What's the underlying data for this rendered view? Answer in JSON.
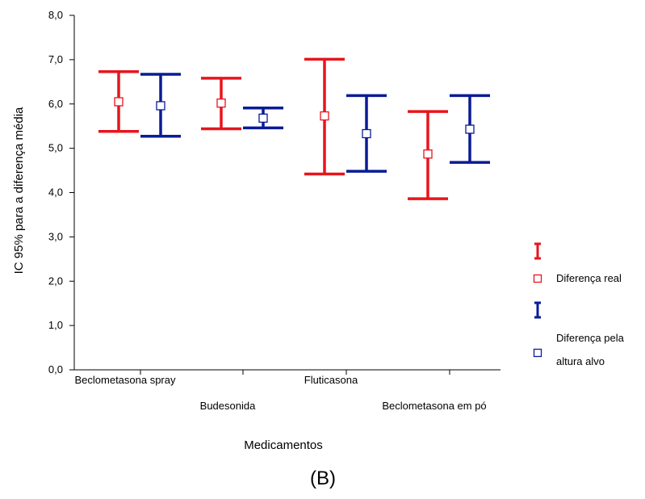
{
  "chart_data": {
    "type": "errorbar",
    "xlabel": "Medicamentos",
    "ylabel": "IC 95% para a diferença média",
    "ylim": [
      0,
      8
    ],
    "yticks": [
      "0,0",
      "1,0",
      "2,0",
      "3,0",
      "4,0",
      "5,0",
      "6,0",
      "7,0",
      "8,0"
    ],
    "categories": [
      "Beclometasona spray",
      "Budesonida",
      "Fluticasona",
      "Beclometasona em pó"
    ],
    "series": [
      {
        "name": "Diferença real",
        "color": "#e8141c",
        "mean": [
          6.05,
          6.02,
          5.73,
          4.87
        ],
        "lower": [
          5.38,
          5.44,
          4.42,
          3.86
        ],
        "upper": [
          6.73,
          6.58,
          7.01,
          5.83
        ]
      },
      {
        "name": "Diferença pela altura alvo",
        "color": "#0a1b96",
        "mean": [
          5.96,
          5.68,
          5.33,
          5.43
        ],
        "lower": [
          5.27,
          5.46,
          4.48,
          4.68
        ],
        "upper": [
          6.67,
          5.91,
          6.19,
          6.19
        ]
      }
    ],
    "legend": {
      "position": "right",
      "lines": [
        "Diferença real",
        "Diferença pela",
        "altura alvo"
      ]
    },
    "panel_label": "(B)",
    "grid": false
  }
}
